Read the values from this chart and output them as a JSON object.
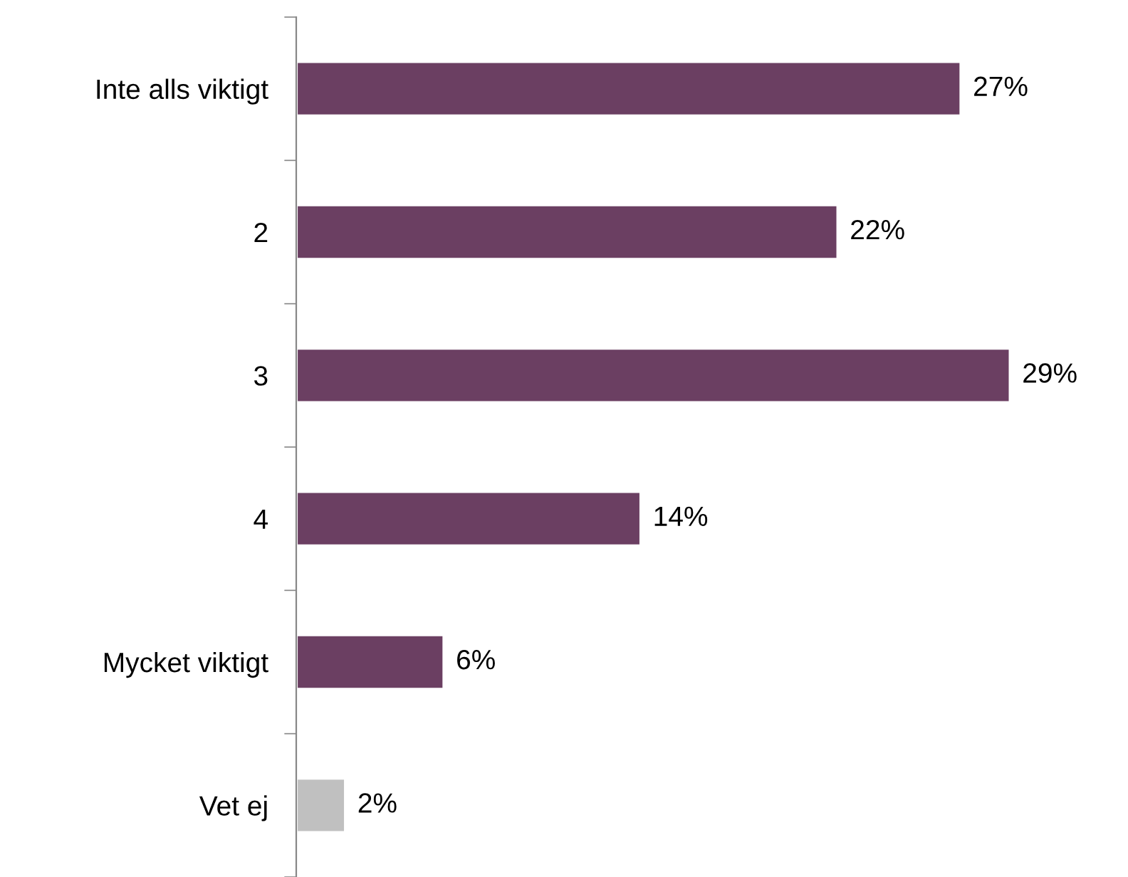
{
  "chart_data": {
    "type": "bar",
    "orientation": "horizontal",
    "categories": [
      "Inte alls viktigt",
      "2",
      "3",
      "4",
      "Mycket viktigt",
      "Vet ej"
    ],
    "values": [
      27,
      22,
      29,
      14,
      6,
      2
    ],
    "colors": [
      "#6b3f62",
      "#6b3f62",
      "#6b3f62",
      "#6b3f62",
      "#6b3f62",
      "#c0c0c0"
    ],
    "value_labels": [
      "27%",
      "22%",
      "29%",
      "14%",
      "6%",
      "2%"
    ],
    "grid": false,
    "legend": false
  }
}
